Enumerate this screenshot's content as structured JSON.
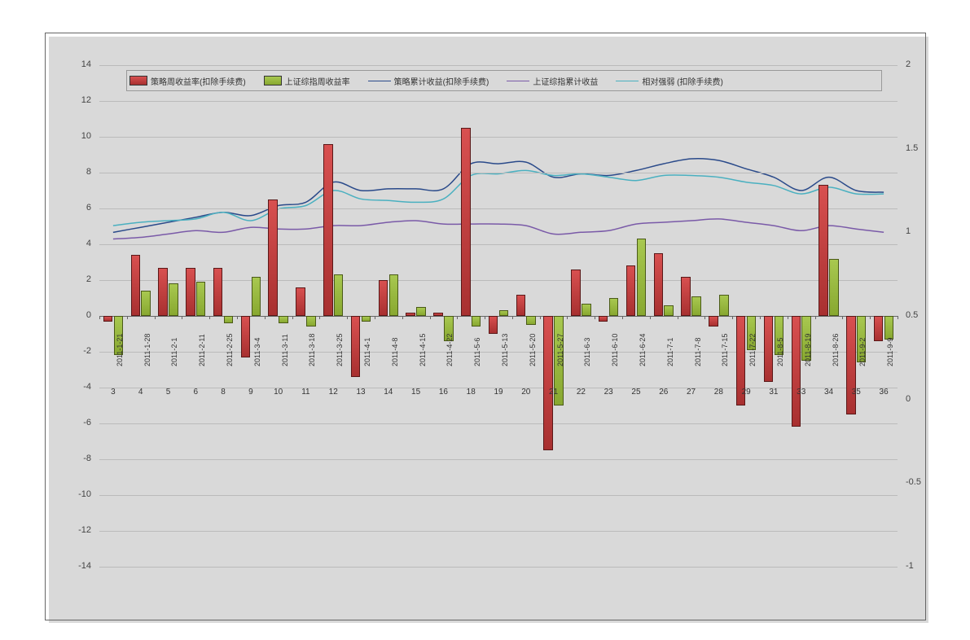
{
  "chart": {
    "type": "bar+line",
    "background_color": "#ffffff",
    "frame_border_color": "#666666",
    "shadow_color": "#d9d9d9",
    "grid_color": "#bbbbbb",
    "left_axis": {
      "min": -14,
      "max": 14,
      "ticks": [
        -14,
        -12,
        -10,
        -8,
        -6,
        -4,
        -2,
        0,
        2,
        4,
        6,
        8,
        10,
        12,
        14
      ],
      "fontsize": 11
    },
    "right_axis": {
      "min": -1,
      "max": 2,
      "ticks": [
        -1,
        -0.5,
        0,
        0.5,
        1,
        1.5,
        2
      ],
      "fontsize": 11
    },
    "categories": [
      {
        "date": "2011-1-21",
        "num": "3"
      },
      {
        "date": "2011-1-28",
        "num": "4"
      },
      {
        "date": "2011-2-1",
        "num": "5"
      },
      {
        "date": "2011-2-11",
        "num": "6"
      },
      {
        "date": "2011-2-25",
        "num": "8"
      },
      {
        "date": "2011-3-4",
        "num": "9"
      },
      {
        "date": "2011-3-11",
        "num": "10"
      },
      {
        "date": "2011-3-18",
        "num": "11"
      },
      {
        "date": "2011-3-25",
        "num": "12"
      },
      {
        "date": "2011-4-1",
        "num": "13"
      },
      {
        "date": "2011-4-8",
        "num": "14"
      },
      {
        "date": "2011-4-15",
        "num": "15"
      },
      {
        "date": "2011-4-22",
        "num": "16"
      },
      {
        "date": "2011-5-6",
        "num": "18"
      },
      {
        "date": "2011-5-13",
        "num": "19"
      },
      {
        "date": "2011-5-20",
        "num": "20"
      },
      {
        "date": "2011-5-27",
        "num": "21"
      },
      {
        "date": "2011-6-3",
        "num": "22"
      },
      {
        "date": "2011-6-10",
        "num": "23"
      },
      {
        "date": "2011-6-24",
        "num": "25"
      },
      {
        "date": "2011-7-1",
        "num": "26"
      },
      {
        "date": "2011-7-8",
        "num": "27"
      },
      {
        "date": "2011-7-15",
        "num": "28"
      },
      {
        "date": "2011-7-22",
        "num": "29"
      },
      {
        "date": "2011-8-5",
        "num": "31"
      },
      {
        "date": "2011-8-19",
        "num": "33"
      },
      {
        "date": "2011-8-26",
        "num": "34"
      },
      {
        "date": "2011-9-2",
        "num": "35"
      },
      {
        "date": "2011-9-9",
        "num": "36"
      }
    ],
    "series_bar1": {
      "label": "策略周收益率(扣除手续费)",
      "color": "#c04040",
      "border": "#5a1818",
      "width": 0.34,
      "values": [
        -0.3,
        3.4,
        2.7,
        2.7,
        2.7,
        -2.3,
        6.5,
        1.6,
        9.6,
        -3.4,
        2.0,
        0.2,
        0.2,
        10.5,
        -1.0,
        1.2,
        -7.5,
        2.6,
        -0.3,
        2.8,
        3.5,
        2.2,
        -0.6,
        -5.0,
        -3.7,
        -6.2,
        7.3,
        -5.5,
        -1.4
      ]
    },
    "series_bar2": {
      "label": "上证综指周收益率",
      "color": "#96b840",
      "border": "#4a5a18",
      "width": 0.34,
      "values": [
        -2.2,
        1.4,
        1.8,
        1.9,
        -0.4,
        2.2,
        -0.4,
        -0.6,
        2.3,
        -0.3,
        2.3,
        0.5,
        -1.4,
        -0.6,
        0.3,
        -0.5,
        -5.0,
        0.7,
        1.0,
        4.3,
        0.6,
        1.1,
        1.2,
        -1.9,
        -2.2,
        -2.5,
        3.2,
        -2.6,
        -1.3
      ]
    },
    "series_line1": {
      "label": "策略累计收益(扣除手续费)",
      "color": "#2a4a8a",
      "stroke_width": 1.5,
      "axis": "right",
      "values": [
        1.0,
        1.03,
        1.06,
        1.09,
        1.12,
        1.1,
        1.16,
        1.18,
        1.3,
        1.25,
        1.26,
        1.26,
        1.26,
        1.41,
        1.41,
        1.42,
        1.33,
        1.35,
        1.34,
        1.37,
        1.41,
        1.44,
        1.43,
        1.38,
        1.33,
        1.25,
        1.33,
        1.25,
        1.24
      ]
    },
    "series_line2": {
      "label": "上证综指累计收益",
      "color": "#7a5aa8",
      "stroke_width": 1.5,
      "axis": "right",
      "values": [
        0.96,
        0.97,
        0.99,
        1.01,
        1.0,
        1.03,
        1.02,
        1.02,
        1.04,
        1.04,
        1.06,
        1.07,
        1.05,
        1.05,
        1.05,
        1.04,
        0.99,
        1.0,
        1.01,
        1.05,
        1.06,
        1.07,
        1.08,
        1.06,
        1.04,
        1.01,
        1.04,
        1.02,
        1.0
      ]
    },
    "series_line3": {
      "label": "相对强弱 (扣除手续费)",
      "color": "#4ab0c0",
      "stroke_width": 1.5,
      "axis": "right",
      "values": [
        1.04,
        1.06,
        1.07,
        1.08,
        1.12,
        1.07,
        1.14,
        1.16,
        1.25,
        1.2,
        1.19,
        1.18,
        1.2,
        1.34,
        1.35,
        1.37,
        1.34,
        1.35,
        1.33,
        1.31,
        1.34,
        1.34,
        1.33,
        1.3,
        1.28,
        1.23,
        1.27,
        1.23,
        1.23
      ]
    },
    "legend_order": [
      "series_bar1",
      "series_bar2",
      "series_line1",
      "series_line2",
      "series_line3"
    ]
  }
}
